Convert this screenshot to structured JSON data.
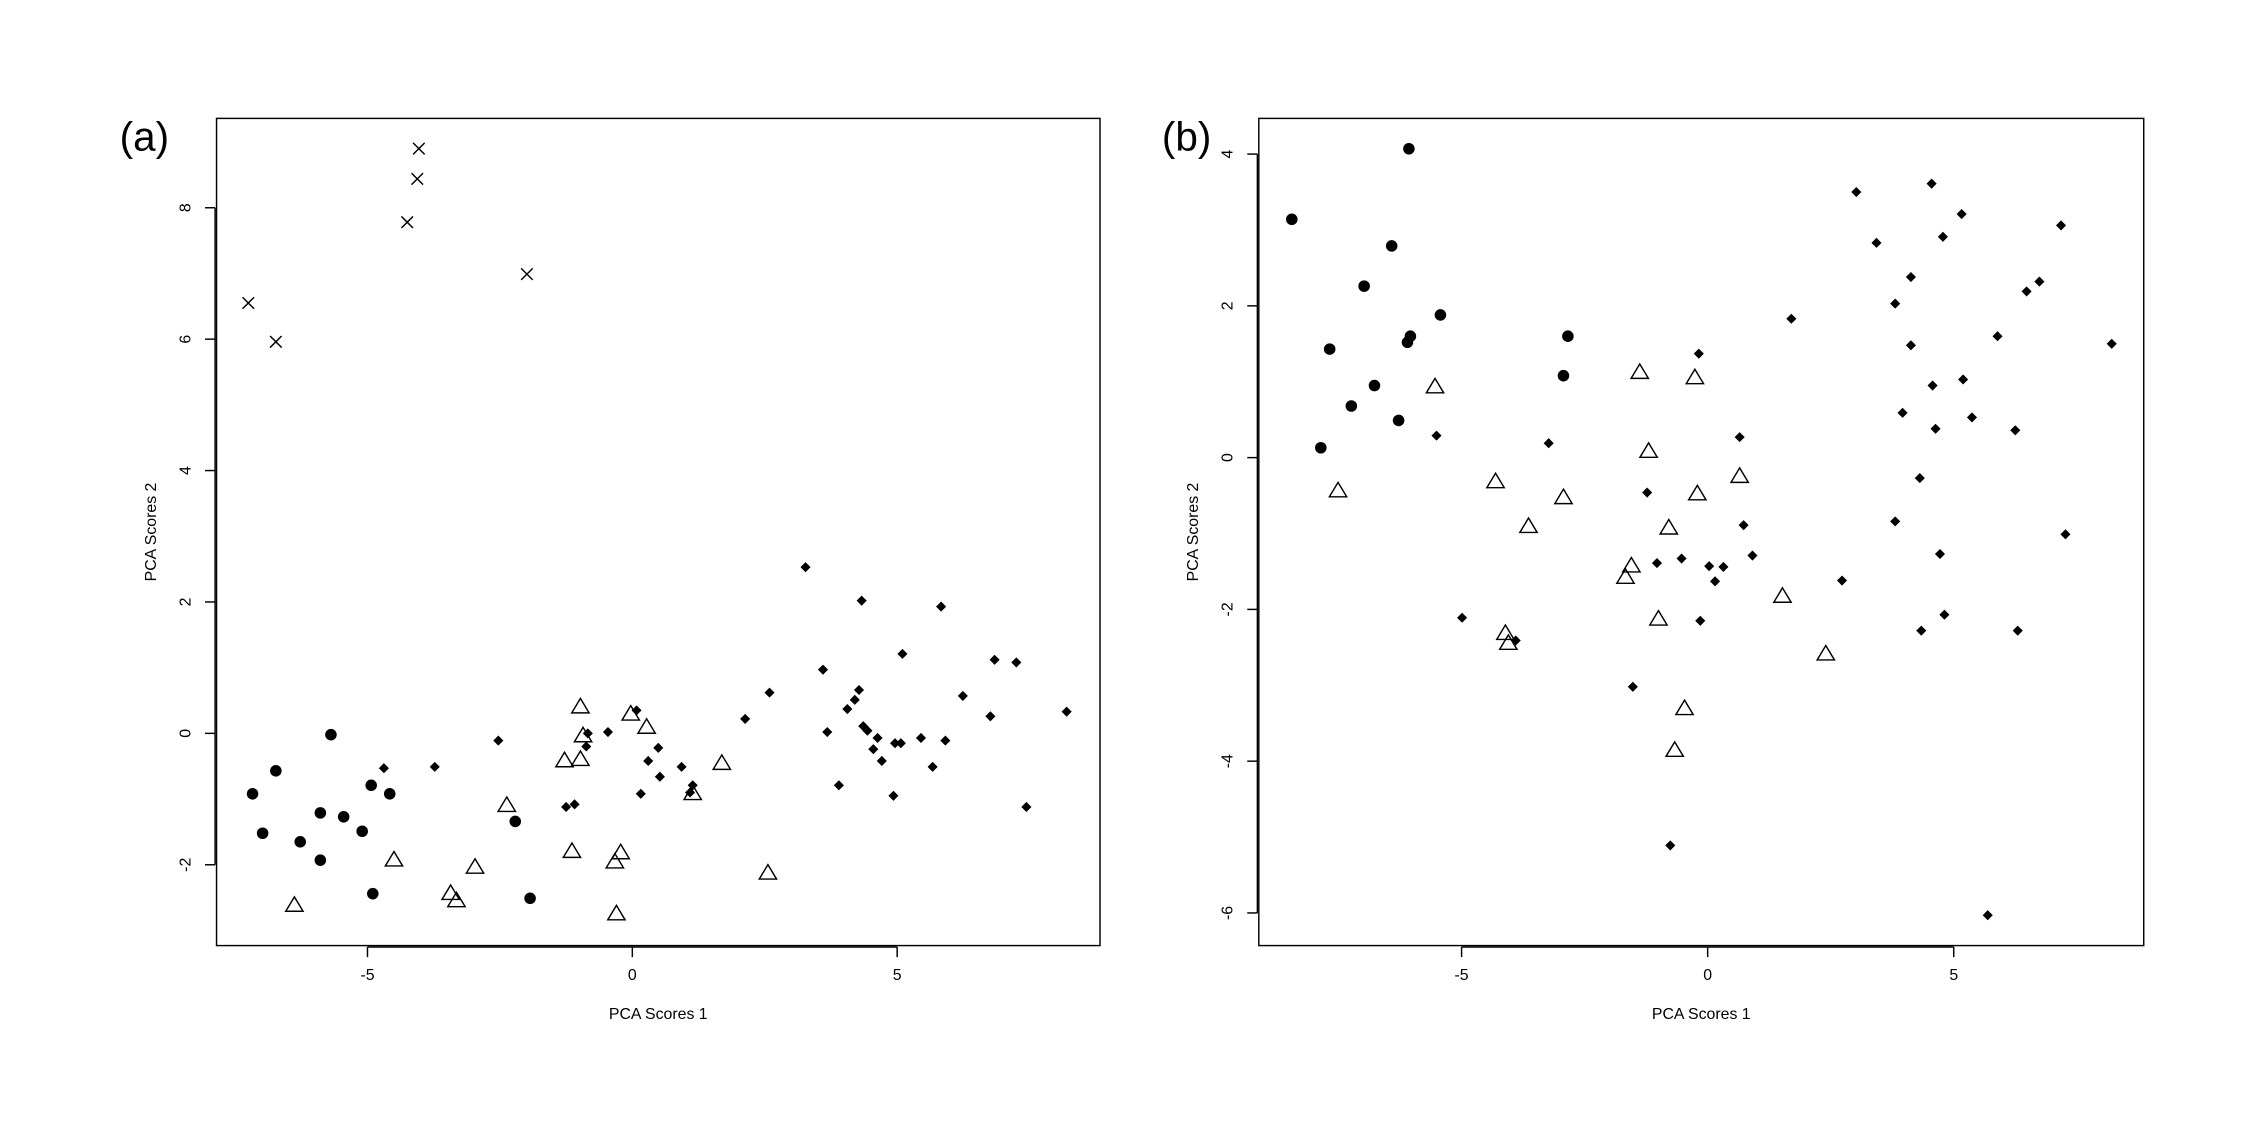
{
  "chart_data": [
    {
      "type": "scatter",
      "title": "(a)",
      "xlabel": "PCA Scores 1",
      "ylabel": "PCA Scores 2",
      "xlim": [
        -7.85,
        8.83
      ],
      "ylim": [
        -3.23,
        9.36
      ],
      "xticks": [
        -5,
        0,
        5
      ],
      "yticks": [
        -2,
        0,
        2,
        4,
        6,
        8
      ],
      "series": [
        {
          "marker": "cross",
          "color": "#000000",
          "x": [
            -7.25,
            -6.73,
            -4.25,
            -4.06,
            -4.03,
            -1.99
          ],
          "y": [
            6.55,
            5.96,
            7.78,
            8.44,
            8.9,
            6.99
          ]
        },
        {
          "marker": "circle",
          "color": "#000000",
          "x": [
            -7.17,
            -6.98,
            -6.73,
            -6.27,
            -5.89,
            -5.89,
            -5.69,
            -5.45,
            -5.1,
            -4.93,
            -4.9,
            -4.58,
            -2.21,
            -1.93
          ],
          "y": [
            -0.92,
            -1.52,
            -0.57,
            -1.65,
            -1.21,
            -1.93,
            -0.02,
            -1.27,
            -1.49,
            -0.79,
            -2.44,
            -0.92,
            -1.34,
            -2.51
          ]
        },
        {
          "marker": "triangle",
          "color": "#000000",
          "x": [
            -6.38,
            -4.5,
            -3.43,
            -3.32,
            -2.97,
            -2.37,
            -1.28,
            -1.14,
            -0.98,
            -0.98,
            -0.93,
            -0.33,
            -0.22,
            -0.3,
            -0.03,
            0.27,
            1.14,
            1.69,
            2.56
          ],
          "y": [
            -2.62,
            -1.93,
            -2.44,
            -2.55,
            -2.04,
            -1.1,
            -0.42,
            -1.8,
            0.4,
            -0.4,
            -0.04,
            -1.96,
            -1.82,
            -2.75,
            0.29,
            0.09,
            -0.92,
            -0.46,
            -2.13
          ]
        },
        {
          "marker": "diamond",
          "color": "#000000",
          "x": [
            -4.69,
            -3.73,
            -2.53,
            -1.25,
            -1.09,
            -0.87,
            -0.84,
            -0.46,
            0.08,
            0.16,
            0.3,
            0.49,
            0.52,
            0.93,
            1.09,
            1.14,
            2.13,
            2.59,
            3.27,
            3.6,
            3.68,
            3.9,
            4.06,
            4.2,
            4.28,
            4.33,
            4.36,
            4.44,
            4.55,
            4.63,
            4.71,
            4.93,
            4.96,
            5.07,
            5.1,
            5.45,
            5.67,
            5.83,
            5.91,
            6.24,
            6.76,
            6.84,
            7.25,
            7.44,
            8.2
          ],
          "y": [
            -0.53,
            -0.51,
            -0.11,
            -1.12,
            -1.08,
            -0.2,
            0.0,
            0.02,
            0.35,
            -0.92,
            -0.42,
            -0.22,
            -0.66,
            -0.51,
            -0.9,
            -0.79,
            0.22,
            0.62,
            2.53,
            0.97,
            0.02,
            -0.79,
            0.37,
            0.51,
            0.66,
            2.02,
            0.11,
            0.04,
            -0.24,
            -0.07,
            -0.42,
            -0.95,
            -0.15,
            -0.15,
            1.21,
            -0.07,
            -0.51,
            1.93,
            -0.11,
            0.57,
            0.26,
            1.12,
            1.08,
            -1.12,
            0.33
          ]
        }
      ]
    },
    {
      "type": "scatter",
      "title": "(b)",
      "xlabel": "PCA Scores 1",
      "ylabel": "PCA Scores 2",
      "xlim": [
        -9.12,
        8.86
      ],
      "ylim": [
        -6.43,
        4.47
      ],
      "xticks": [
        -5,
        0,
        5
      ],
      "yticks": [
        -6,
        -4,
        -2,
        0,
        2,
        4
      ],
      "series": [
        {
          "marker": "circle",
          "color": "#000000",
          "x": [
            -8.45,
            -7.86,
            -7.68,
            -7.24,
            -6.98,
            -6.77,
            -6.42,
            -6.28,
            -6.07,
            -6.1,
            -6.04,
            -5.43,
            -2.93,
            -2.84
          ],
          "y": [
            3.14,
            0.13,
            1.43,
            0.68,
            2.26,
            0.95,
            2.79,
            0.49,
            4.07,
            1.52,
            1.6,
            1.88,
            1.08,
            1.6
          ]
        },
        {
          "marker": "triangle",
          "color": "#000000",
          "x": [
            -7.51,
            -5.54,
            -4.31,
            -4.11,
            -4.05,
            -3.64,
            -2.93,
            -1.67,
            -1.55,
            -1.38,
            -1.2,
            -1.0,
            -0.79,
            -0.67,
            -0.47,
            -0.26,
            -0.21,
            0.65,
            1.52,
            2.4
          ],
          "y": [
            -0.44,
            0.93,
            -0.32,
            -2.32,
            -2.45,
            -0.91,
            -0.53,
            -1.58,
            -1.43,
            1.12,
            0.08,
            -2.13,
            -0.93,
            -3.86,
            -3.31,
            1.05,
            -0.48,
            -0.25,
            -1.83,
            -2.59
          ]
        },
        {
          "marker": "diamond",
          "color": "#000000",
          "x": [
            -5.51,
            -4.99,
            -3.9,
            -3.23,
            -1.52,
            -1.23,
            -1.03,
            -0.76,
            -0.53,
            -0.18,
            -0.15,
            0.03,
            0.15,
            0.32,
            0.65,
            0.73,
            0.91,
            1.7,
            2.73,
            3.02,
            3.43,
            3.81,
            3.81,
            3.96,
            4.13,
            4.13,
            4.31,
            4.34,
            4.57,
            4.55,
            4.63,
            4.72,
            4.78,
            4.81,
            5.16,
            5.19,
            5.37,
            5.69,
            5.89,
            6.25,
            6.3,
            6.48,
            6.74,
            7.18,
            7.27,
            8.21
          ],
          "y": [
            0.29,
            -2.11,
            -2.41,
            0.19,
            -3.02,
            -0.46,
            -1.39,
            -5.11,
            -1.33,
            1.37,
            -2.15,
            -1.43,
            -1.63,
            -1.44,
            0.27,
            -0.89,
            -1.29,
            1.83,
            -1.62,
            3.5,
            2.83,
            2.03,
            -0.84,
            0.59,
            2.38,
            1.48,
            -0.27,
            -2.28,
            0.95,
            3.61,
            0.38,
            -1.27,
            2.91,
            -2.07,
            3.21,
            1.03,
            0.53,
            -6.03,
            1.6,
            0.36,
            -2.28,
            2.19,
            2.32,
            3.06,
            -1.01,
            1.5
          ]
        }
      ]
    }
  ]
}
